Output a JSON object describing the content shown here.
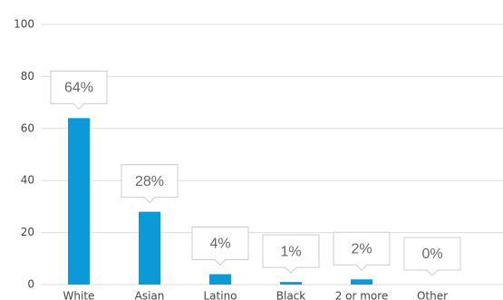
{
  "chart_data": {
    "type": "bar",
    "categories": [
      "White",
      "Asian",
      "Latino",
      "Black",
      "2 or more",
      "Other"
    ],
    "values": [
      64,
      28,
      4,
      1,
      2,
      0
    ],
    "value_labels": [
      "64%",
      "28%",
      "4%",
      "1%",
      "2%",
      "0%"
    ],
    "color": "#0a9ad7",
    "ylim": [
      0,
      100
    ],
    "yticks": [
      0,
      20,
      40,
      60,
      80,
      100
    ],
    "grid": true
  }
}
